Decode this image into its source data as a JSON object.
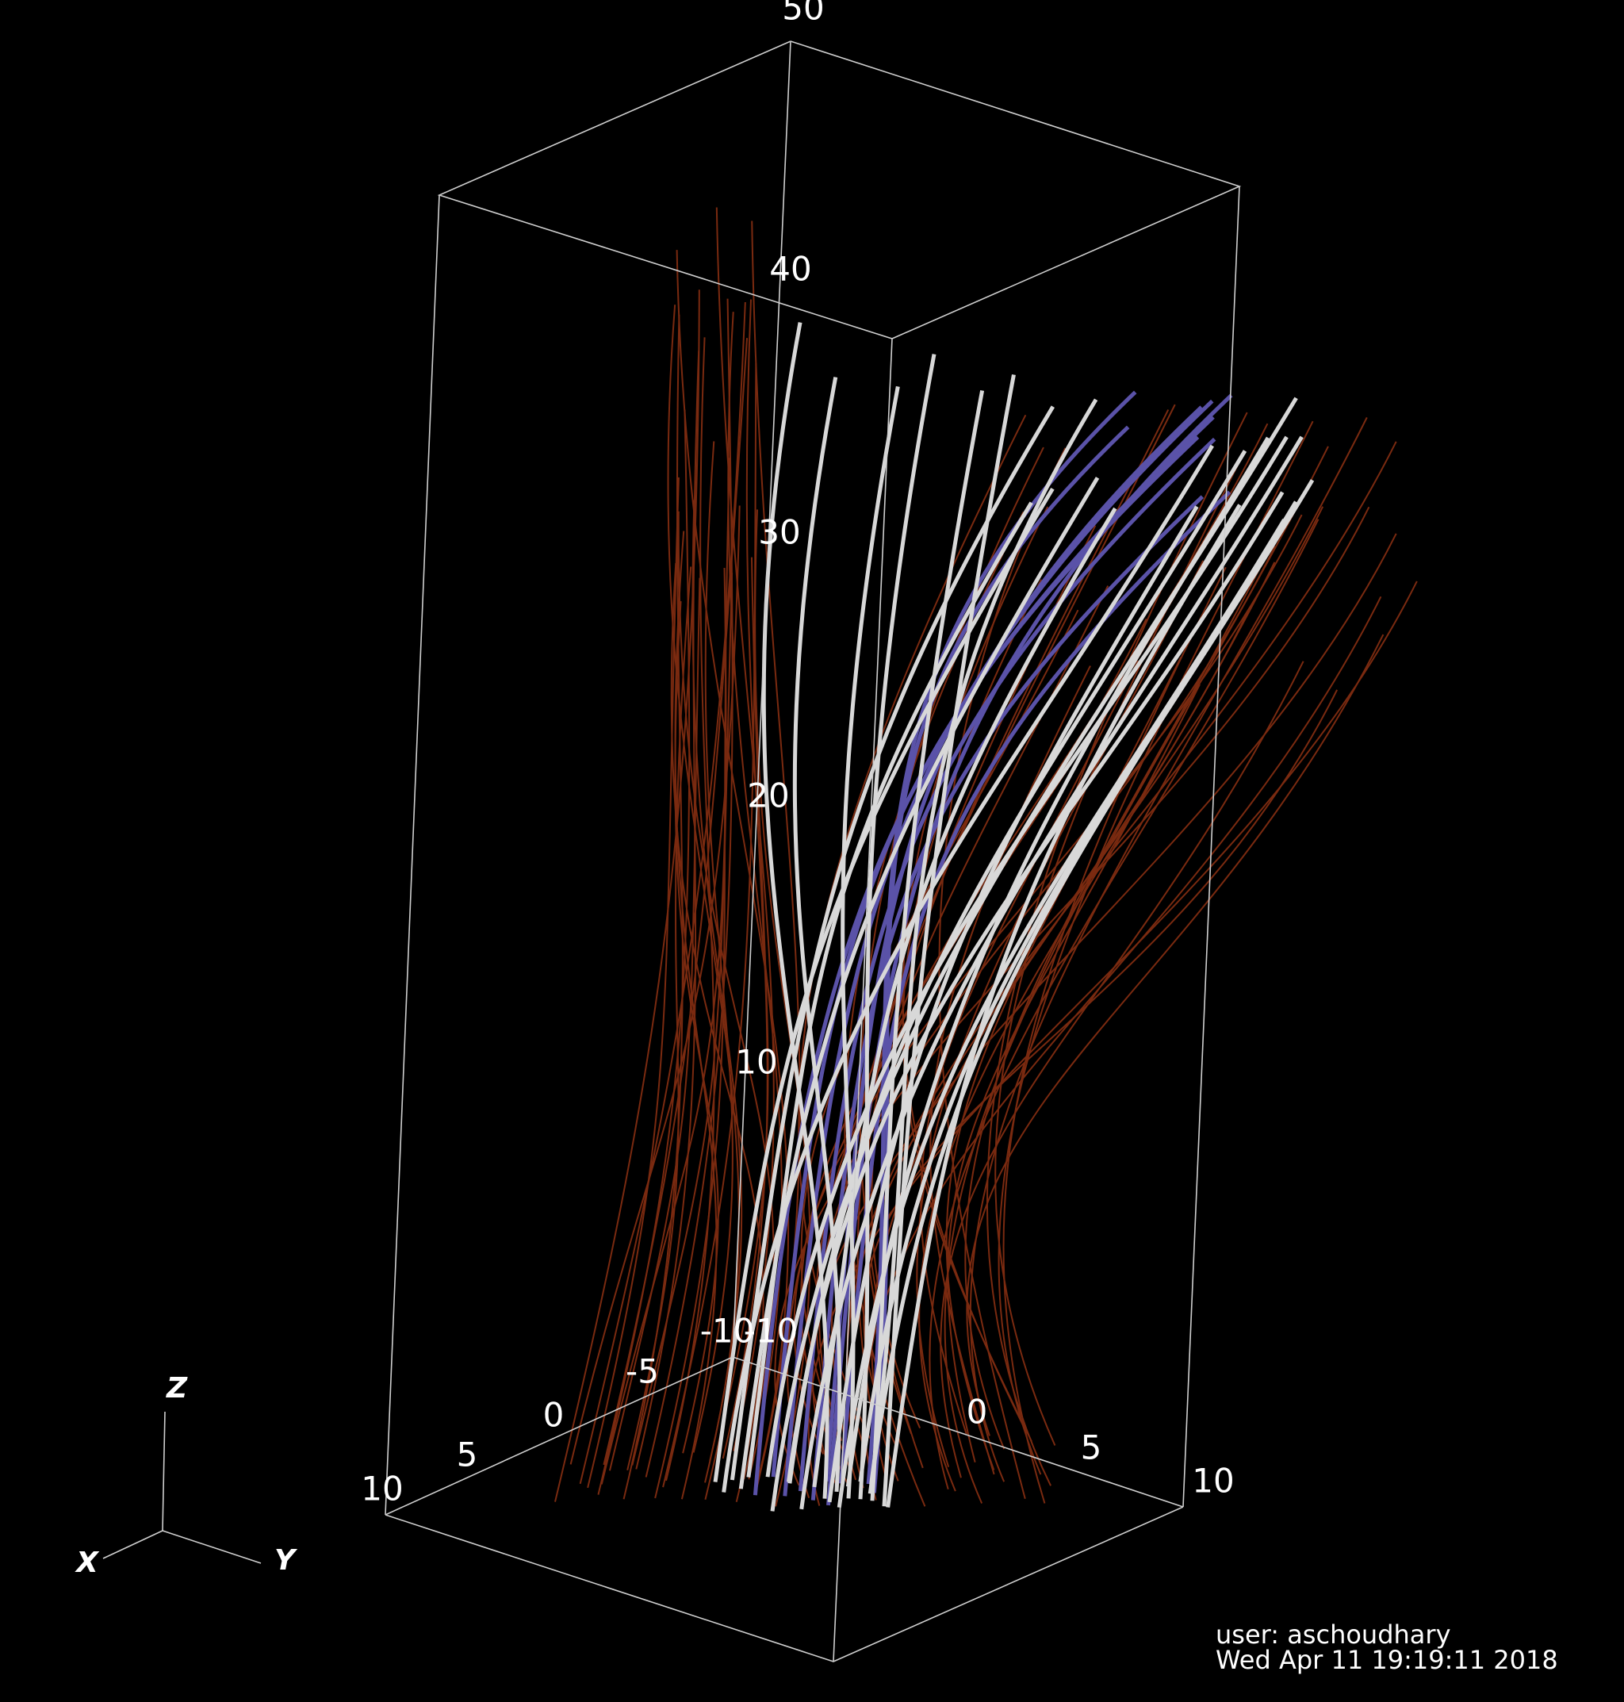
{
  "axes": {
    "z_ticks": [
      "50",
      "40",
      "30",
      "20",
      "10"
    ],
    "x_ticks": [
      "10",
      "5",
      "0",
      "-5",
      "-10"
    ],
    "y_ticks": [
      "-10",
      "0",
      "5",
      "10"
    ]
  },
  "triad": {
    "x": "X",
    "y": "Y",
    "z": "Z"
  },
  "footer": {
    "user": "user: aschoudhary",
    "date": "Wed Apr 11 19:19:11 2018"
  }
}
